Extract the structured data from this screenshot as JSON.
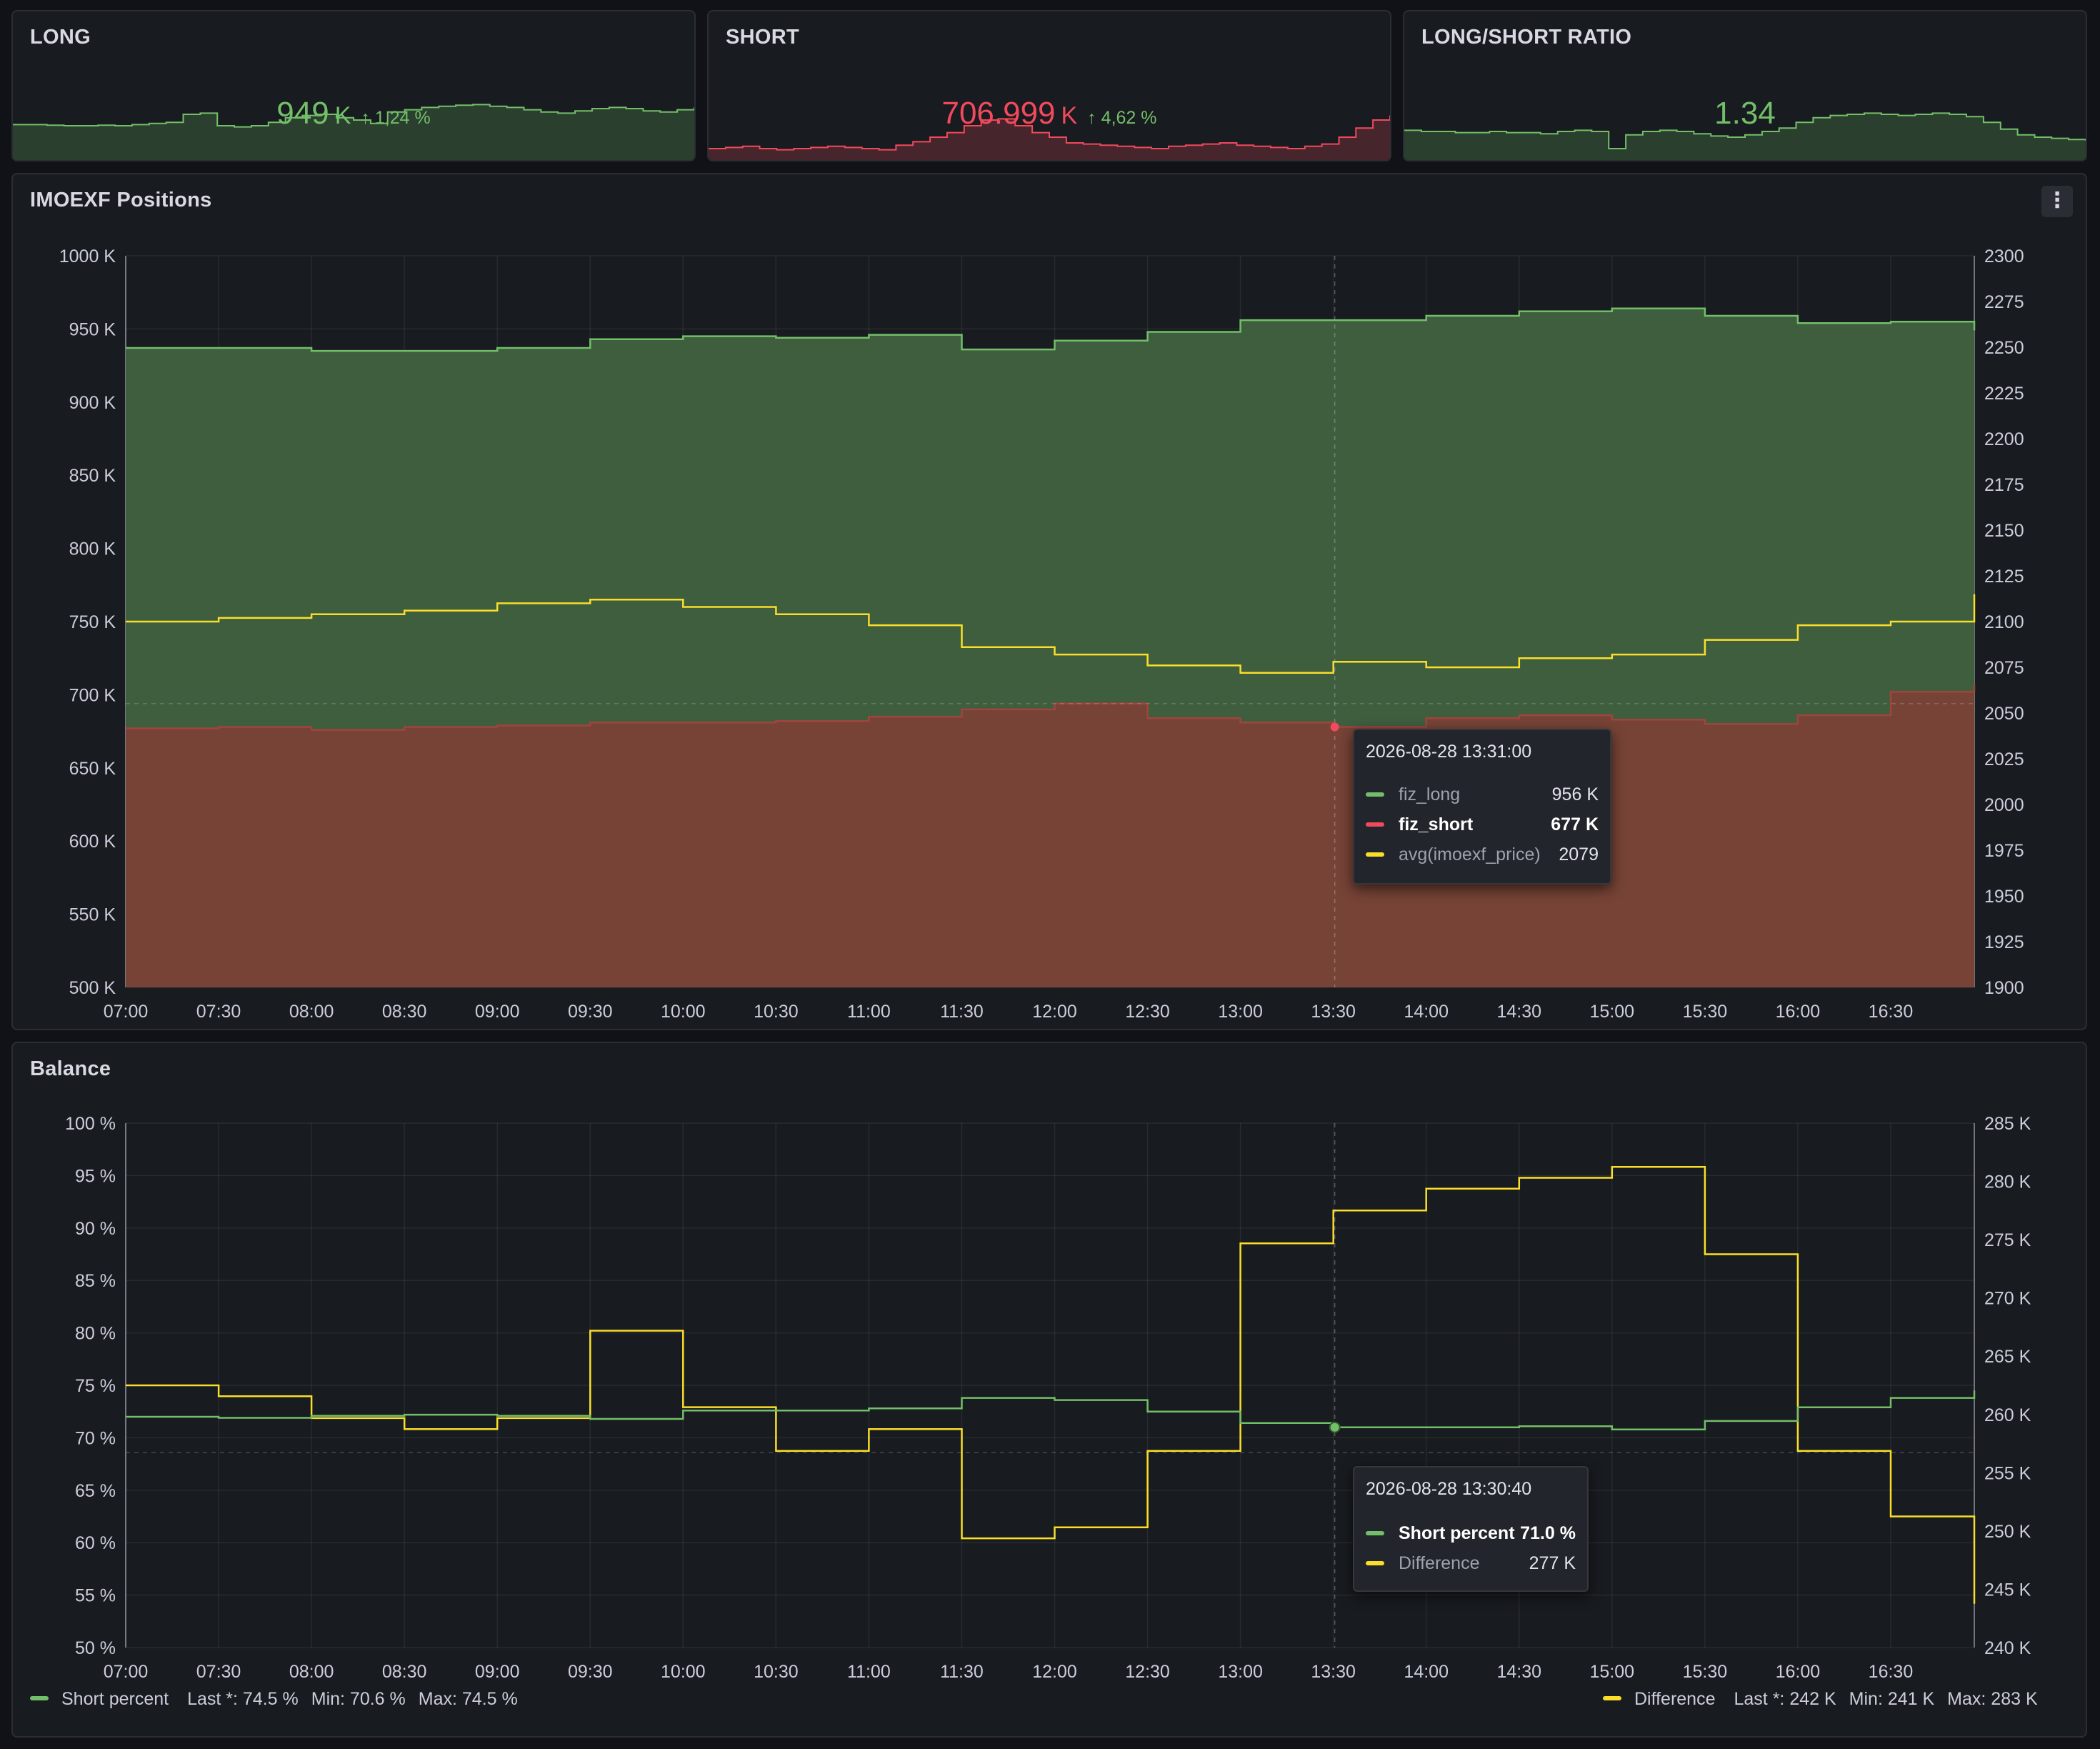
{
  "stats": {
    "long": {
      "title": "LONG",
      "value": "949",
      "unit": "K",
      "delta": "1,24 %",
      "color": "#73bf69",
      "spark": [
        62,
        62,
        61,
        60,
        60,
        61,
        60,
        62,
        64,
        66,
        80,
        82,
        60,
        58,
        60,
        66,
        74,
        78,
        80,
        74,
        70,
        64,
        84,
        88,
        92,
        94,
        96,
        97,
        94,
        92,
        88,
        84,
        82,
        86,
        90,
        92,
        90,
        86,
        84,
        88,
        92
      ]
    },
    "short": {
      "title": "SHORT",
      "value": "706.999",
      "unit": "K",
      "delta": "4,62 %",
      "color": "#f2495c",
      "spark": [
        20,
        22,
        24,
        20,
        18,
        20,
        22,
        24,
        22,
        20,
        18,
        26,
        32,
        40,
        48,
        60,
        70,
        72,
        60,
        48,
        40,
        30,
        28,
        26,
        24,
        22,
        20,
        24,
        26,
        28,
        30,
        26,
        24,
        22,
        20,
        24,
        28,
        40,
        56,
        70,
        78
      ]
    },
    "ratio": {
      "title": "LONG/SHORT RATIO",
      "value": "1.34",
      "color": "#73bf69",
      "spark": [
        52,
        50,
        50,
        48,
        48,
        50,
        48,
        48,
        46,
        50,
        52,
        50,
        20,
        44,
        50,
        52,
        50,
        46,
        42,
        40,
        44,
        50,
        56,
        66,
        74,
        78,
        80,
        82,
        80,
        78,
        80,
        82,
        80,
        76,
        66,
        54,
        44,
        40,
        38,
        36,
        34
      ]
    }
  },
  "positions": {
    "title": "IMOEXF Positions",
    "menu_icon": "⋮",
    "tooltip": {
      "time": "2026-08-28 13:31:00",
      "rows": [
        {
          "name": "fiz_long",
          "value": "956 K",
          "color": "#73bf69",
          "highlight": false
        },
        {
          "name": "fiz_short",
          "value": "677 K",
          "color": "#f2495c",
          "highlight": true
        },
        {
          "name": "avg(imoexf_price)",
          "value": "2079",
          "color": "#fade2a",
          "highlight": false
        }
      ]
    }
  },
  "balance": {
    "title": "Balance",
    "tooltip": {
      "time": "2026-08-28 13:30:40",
      "rows": [
        {
          "name": "Short percent",
          "value": "71.0 %",
          "color": "#73bf69",
          "highlight": true
        },
        {
          "name": "Difference",
          "value": "277 K",
          "color": "#fade2a",
          "highlight": false
        }
      ]
    },
    "legend": [
      {
        "name": "Short percent",
        "color": "#73bf69",
        "last": "Last *: 74.5 %",
        "min": "Min: 70.6 %",
        "max": "Max: 74.5 %"
      },
      {
        "name": "Difference",
        "color": "#fade2a",
        "last": "Last *: 242 K",
        "min": "Min: 241 K",
        "max": "Max: 283 K"
      }
    ]
  },
  "chart_data": [
    {
      "type": "area",
      "title": "IMOEXF Positions",
      "x": [
        "07:00",
        "07:30",
        "08:00",
        "08:30",
        "09:00",
        "09:30",
        "10:00",
        "10:30",
        "11:00",
        "11:30",
        "12:00",
        "12:30",
        "13:00",
        "13:30",
        "14:00",
        "14:30",
        "15:00",
        "15:30",
        "16:00",
        "16:30",
        "16:57"
      ],
      "x_ticks": [
        "07:00",
        "07:30",
        "08:00",
        "08:30",
        "09:00",
        "09:30",
        "10:00",
        "10:30",
        "11:00",
        "11:30",
        "12:00",
        "12:30",
        "13:00",
        "13:30",
        "14:00",
        "14:30",
        "15:00",
        "15:30",
        "16:00",
        "16:30"
      ],
      "ylim": [
        500,
        1000
      ],
      "y_ticks": [
        "500 K",
        "550 K",
        "600 K",
        "650 K",
        "700 K",
        "750 K",
        "800 K",
        "850 K",
        "900 K",
        "950 K",
        "1000 K"
      ],
      "y2lim": [
        1900,
        2300
      ],
      "y2_ticks": [
        "1900",
        "1925",
        "1950",
        "1975",
        "2000",
        "2025",
        "2050",
        "2075",
        "2100",
        "2125",
        "2150",
        "2175",
        "2200",
        "2225",
        "2250",
        "2275",
        "2300"
      ],
      "grid": true,
      "series": [
        {
          "name": "fiz_long",
          "unit": "K",
          "axis": "left",
          "color": "#73bf69",
          "values": [
            937,
            937,
            935,
            935,
            937,
            943,
            945,
            944,
            946,
            936,
            942,
            948,
            956,
            956,
            959,
            962,
            964,
            959,
            954,
            955,
            949
          ]
        },
        {
          "name": "fiz_short",
          "unit": "K",
          "axis": "left",
          "color": "#f2495c",
          "values": [
            677,
            678,
            676,
            678,
            679,
            681,
            681,
            682,
            685,
            690,
            694,
            684,
            681,
            678,
            684,
            686,
            683,
            680,
            686,
            702,
            707
          ]
        },
        {
          "name": "avg(imoexf_price)",
          "axis": "right",
          "color": "#fade2a",
          "values": [
            2100,
            2102,
            2104,
            2106,
            2110,
            2112,
            2108,
            2104,
            2098,
            2086,
            2082,
            2076,
            2072,
            2078,
            2075,
            2080,
            2082,
            2090,
            2098,
            2100,
            2115
          ]
        }
      ]
    },
    {
      "type": "line",
      "title": "Balance",
      "x": [
        "07:00",
        "07:30",
        "08:00",
        "08:30",
        "09:00",
        "09:30",
        "10:00",
        "10:30",
        "11:00",
        "11:30",
        "12:00",
        "12:30",
        "13:00",
        "13:30",
        "14:00",
        "14:30",
        "15:00",
        "15:30",
        "16:00",
        "16:30",
        "16:57"
      ],
      "x_ticks": [
        "07:00",
        "07:30",
        "08:00",
        "08:30",
        "09:00",
        "09:30",
        "10:00",
        "10:30",
        "11:00",
        "11:30",
        "12:00",
        "12:30",
        "13:00",
        "13:30",
        "14:00",
        "14:30",
        "15:00",
        "15:30",
        "16:00",
        "16:30"
      ],
      "ylim": [
        50,
        100
      ],
      "y_ticks": [
        "50 %",
        "55 %",
        "60 %",
        "65 %",
        "70 %",
        "75 %",
        "80 %",
        "85 %",
        "90 %",
        "95 %",
        "100 %"
      ],
      "y2lim": [
        238,
        286
      ],
      "y2_ticks": [
        "240 K",
        "245 K",
        "250 K",
        "255 K",
        "260 K",
        "265 K",
        "270 K",
        "275 K",
        "280 K",
        "285 K"
      ],
      "grid": true,
      "series": [
        {
          "name": "Short percent",
          "unit": "%",
          "axis": "left",
          "color": "#73bf69",
          "values": [
            72.0,
            71.9,
            72.1,
            72.2,
            72.1,
            71.8,
            72.6,
            72.6,
            72.8,
            73.8,
            73.6,
            72.5,
            71.4,
            71.0,
            71.0,
            71.1,
            70.8,
            71.6,
            72.9,
            73.8,
            74.5
          ]
        },
        {
          "name": "Difference",
          "unit": "K",
          "axis": "right",
          "color": "#fade2a",
          "values": [
            262,
            261,
            259,
            258,
            259,
            267,
            260,
            256,
            258,
            248,
            249,
            256,
            275,
            278,
            280,
            281,
            282,
            274,
            256,
            250,
            242
          ]
        }
      ]
    }
  ]
}
